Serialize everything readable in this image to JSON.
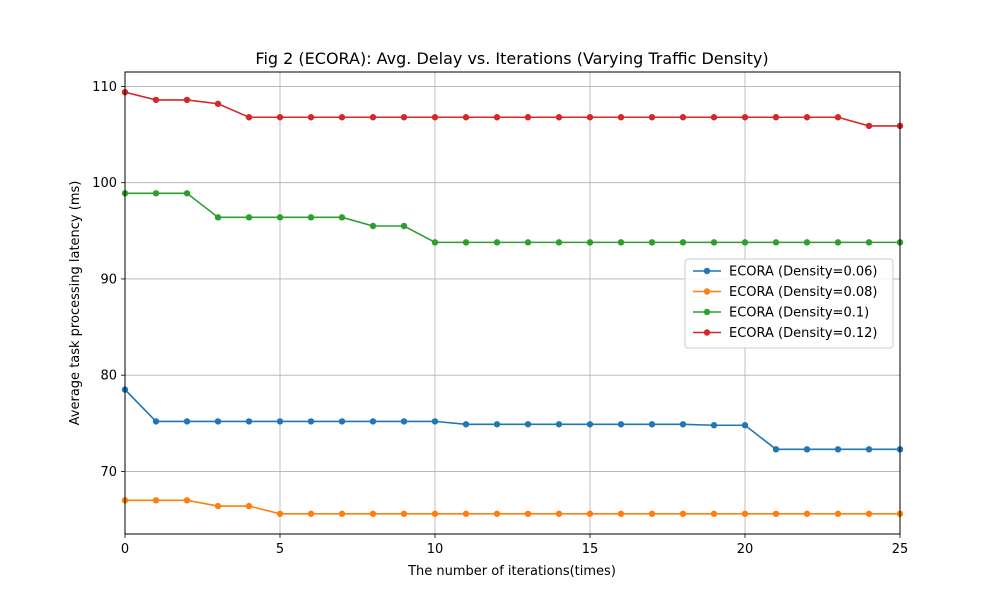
{
  "chart_data": {
    "type": "line",
    "title": "Fig 2 (ECORA): Avg. Delay vs. Iterations (Varying Traffic Density)",
    "xlabel": "The number of iterations(times)",
    "ylabel": "Average task processing latency (ms)",
    "xlim": [
      0,
      25
    ],
    "ylim": [
      63.5,
      111.5
    ],
    "xticks": [
      0,
      5,
      10,
      15,
      20,
      25
    ],
    "yticks": [
      70,
      80,
      90,
      100,
      110
    ],
    "grid": true,
    "legend_position": "center-right",
    "x": [
      0,
      1,
      2,
      3,
      4,
      5,
      6,
      7,
      8,
      9,
      10,
      11,
      12,
      13,
      14,
      15,
      16,
      17,
      18,
      19,
      20,
      21,
      22,
      23,
      24,
      25
    ],
    "series": [
      {
        "name": "ECORA (Density=0.06)",
        "color": "#1f77b4",
        "values": [
          78.5,
          75.2,
          75.2,
          75.2,
          75.2,
          75.2,
          75.2,
          75.2,
          75.2,
          75.2,
          75.2,
          74.9,
          74.9,
          74.9,
          74.9,
          74.9,
          74.9,
          74.9,
          74.9,
          74.8,
          74.8,
          72.3,
          72.3,
          72.3,
          72.3,
          72.3
        ]
      },
      {
        "name": "ECORA (Density=0.08)",
        "color": "#ff7f0e",
        "values": [
          67.0,
          67.0,
          67.0,
          66.4,
          66.4,
          65.6,
          65.6,
          65.6,
          65.6,
          65.6,
          65.6,
          65.6,
          65.6,
          65.6,
          65.6,
          65.6,
          65.6,
          65.6,
          65.6,
          65.6,
          65.6,
          65.6,
          65.6,
          65.6,
          65.6,
          65.6
        ]
      },
      {
        "name": "ECORA (Density=0.1)",
        "color": "#2ca02c",
        "values": [
          98.9,
          98.9,
          98.9,
          96.4,
          96.4,
          96.4,
          96.4,
          96.4,
          95.5,
          95.5,
          93.8,
          93.8,
          93.8,
          93.8,
          93.8,
          93.8,
          93.8,
          93.8,
          93.8,
          93.8,
          93.8,
          93.8,
          93.8,
          93.8,
          93.8,
          93.8
        ]
      },
      {
        "name": "ECORA (Density=0.12)",
        "color": "#d62728",
        "values": [
          109.4,
          108.6,
          108.6,
          108.2,
          106.8,
          106.8,
          106.8,
          106.8,
          106.8,
          106.8,
          106.8,
          106.8,
          106.8,
          106.8,
          106.8,
          106.8,
          106.8,
          106.8,
          106.8,
          106.8,
          106.8,
          106.8,
          106.8,
          106.8,
          105.9,
          105.9
        ]
      }
    ]
  }
}
